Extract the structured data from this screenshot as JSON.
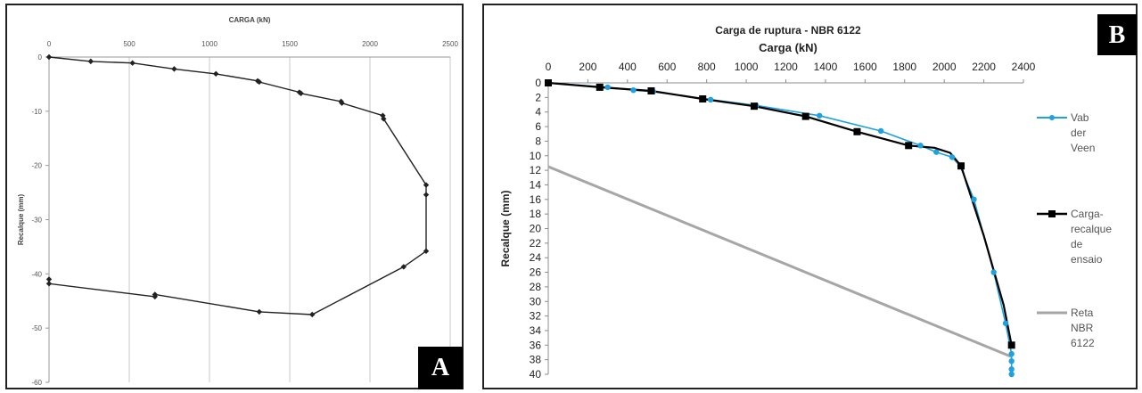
{
  "chart_data": [
    {
      "panel": "A",
      "type": "line",
      "title": "",
      "xlabel": "CARGA (kN)",
      "ylabel": "Recalque (mm)",
      "xlim": [
        0,
        2500
      ],
      "ylim": [
        -60,
        0
      ],
      "xticks": [
        0,
        500,
        1000,
        1500,
        2000,
        2500
      ],
      "yticks": [
        0,
        -10,
        -20,
        -30,
        -40,
        -50,
        -60
      ],
      "x_axis_position": "top",
      "grid": "vertical",
      "series": [
        {
          "color": "#222222",
          "marker": "diamond",
          "points": [
            [
              0,
              0
            ],
            [
              260,
              -0.8
            ],
            [
              520,
              -1.1
            ],
            [
              780,
              -2.2
            ],
            [
              1040,
              -3.1
            ],
            [
              1300,
              -4.4
            ],
            [
              1310,
              -4.6
            ],
            [
              1560,
              -6.5
            ],
            [
              1570,
              -6.7
            ],
            [
              1820,
              -8.2
            ],
            [
              1825,
              -8.5
            ],
            [
              2080,
              -10.8
            ],
            [
              2085,
              -11.4
            ],
            [
              2350,
              -23.6
            ],
            [
              2350,
              -25.4
            ],
            [
              2350,
              -35.8
            ],
            [
              2210,
              -38.7
            ],
            [
              1640,
              -47.5
            ],
            [
              1310,
              -47.0
            ],
            [
              660,
              -43.8
            ],
            [
              660,
              -44.2
            ],
            [
              0,
              -41.8
            ],
            [
              0,
              -41.0
            ]
          ]
        }
      ],
      "badge": "A"
    },
    {
      "panel": "B",
      "type": "line",
      "title": "Carga de ruptura  - NBR 6122",
      "xlabel": "Carga (kN)",
      "ylabel": "Recalque (mm)",
      "xlim": [
        0,
        2400
      ],
      "ylim": [
        0,
        40
      ],
      "xticks": [
        0,
        200,
        400,
        600,
        800,
        1000,
        1200,
        1400,
        1600,
        1800,
        2000,
        2200,
        2400
      ],
      "yticks": [
        0,
        2,
        4,
        6,
        8,
        10,
        12,
        14,
        16,
        18,
        20,
        22,
        24,
        26,
        28,
        30,
        32,
        34,
        36,
        38,
        40
      ],
      "x_axis_position": "top",
      "y_reversed": true,
      "grid": "none",
      "legend_position": "right",
      "series": [
        {
          "name": "Vab der Veen",
          "color": "#1ea1e0",
          "marker": "circle",
          "points": [
            [
              0,
              0
            ],
            [
              300,
              0.6
            ],
            [
              430,
              1.0
            ],
            [
              530,
              1.2
            ],
            [
              820,
              2.3
            ],
            [
              1050,
              3.1
            ],
            [
              1370,
              4.5
            ],
            [
              1680,
              6.6
            ],
            [
              1880,
              8.6
            ],
            [
              1960,
              9.5
            ],
            [
              2040,
              10.2
            ],
            [
              2080,
              11.4
            ],
            [
              2150,
              16.0
            ],
            [
              2250,
              26.0
            ],
            [
              2310,
              33.0
            ],
            [
              2340,
              37.2
            ],
            [
              2340,
              38.2
            ],
            [
              2340,
              39.3
            ],
            [
              2340,
              40.0
            ]
          ]
        },
        {
          "name": "Carga-recalque de ensaio",
          "legend_lines": [
            "Carga-",
            "recalque de",
            "ensaio"
          ],
          "color": "#000000",
          "marker": "square",
          "points": [
            [
              0,
              0
            ],
            [
              260,
              0.6
            ],
            [
              520,
              1.1
            ],
            [
              780,
              2.2
            ],
            [
              1040,
              3.2
            ],
            [
              1300,
              4.6
            ],
            [
              1560,
              6.7
            ],
            [
              1820,
              8.6
            ],
            [
              1950,
              8.9
            ],
            [
              2030,
              9.6
            ],
            [
              2085,
              11.4
            ],
            [
              2200,
              21.0
            ],
            [
              2300,
              30.5
            ],
            [
              2340,
              36.0
            ]
          ]
        },
        {
          "name": "Reta NBR 6122",
          "legend_lines": [
            "Reta NBR",
            "6122"
          ],
          "color": "#a6a6a6",
          "marker": "none",
          "points": [
            [
              0,
              11.5
            ],
            [
              2340,
              37.6
            ]
          ]
        }
      ],
      "badge": "B"
    }
  ]
}
